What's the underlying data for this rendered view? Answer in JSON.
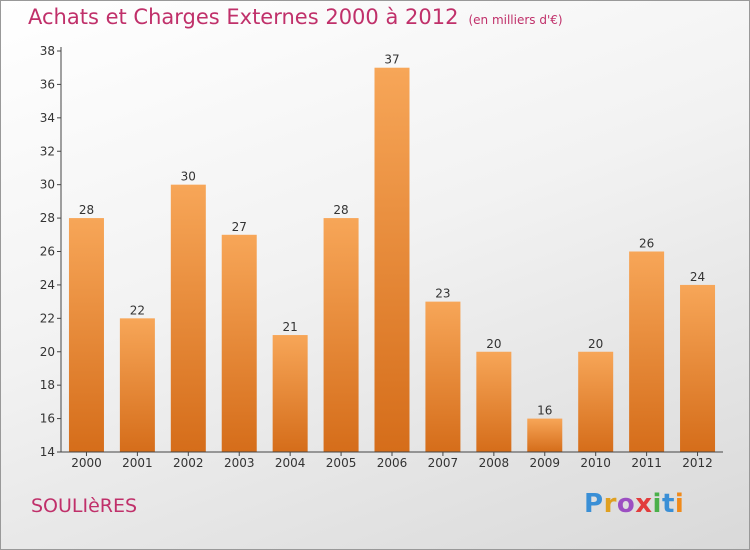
{
  "title": "Achats et Charges Externes 2000 à 2012",
  "subtitle": "(en milliers d'€)",
  "commune": "SOULIèRES",
  "logo_text": "Proxiti",
  "colors": {
    "title": "#c0306a",
    "bar_top": "#f7a658",
    "bar_bottom": "#d56d1a",
    "axis": "#444444"
  },
  "chart_data": {
    "type": "bar",
    "title": "Achats et Charges Externes 2000 à 2012",
    "xlabel": "",
    "ylabel": "",
    "categories": [
      "2000",
      "2001",
      "2002",
      "2003",
      "2004",
      "2005",
      "2006",
      "2007",
      "2008",
      "2009",
      "2010",
      "2011",
      "2012"
    ],
    "values": [
      28,
      22,
      30,
      27,
      21,
      28,
      37,
      23,
      20,
      16,
      20,
      26,
      24
    ],
    "ylim": [
      14,
      38
    ],
    "yticks": [
      14,
      16,
      18,
      20,
      22,
      24,
      26,
      28,
      30,
      32,
      34,
      36,
      38
    ],
    "grid": false,
    "data_labels": true
  }
}
